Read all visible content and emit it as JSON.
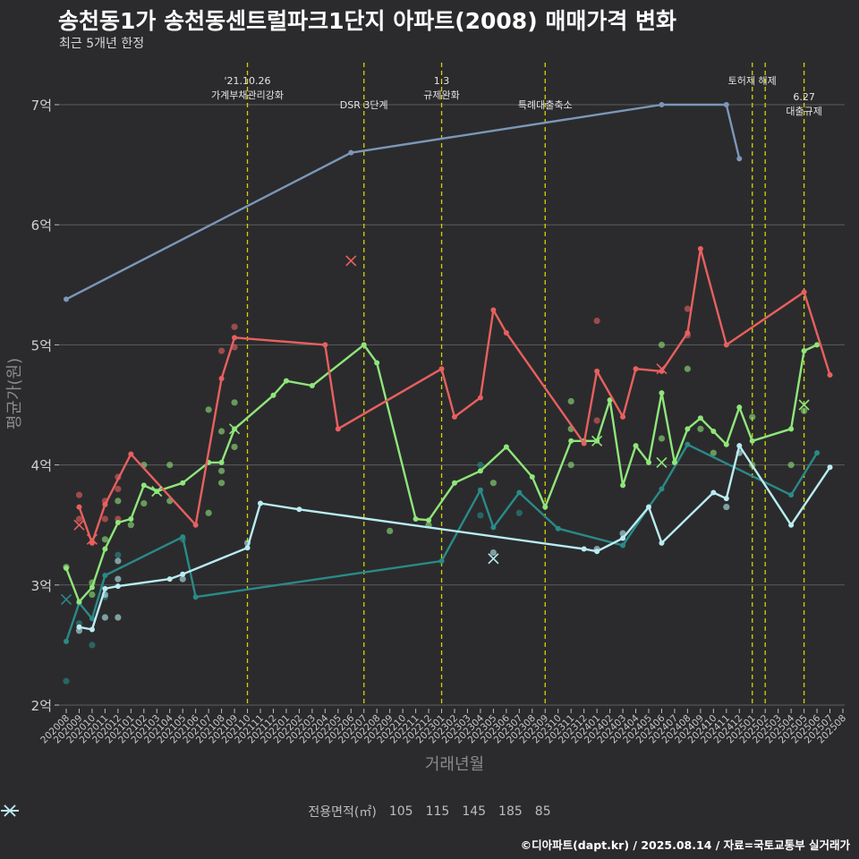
{
  "title": "송천동1가 송천동센트럴파크1단지 아파트(2008) 매매가격 변화",
  "subtitle": "최근 5개년 한정",
  "caption": "©디아파트(dapt.kr) / 2025.08.14 / 자료=국토교통부 실거래가",
  "chart_data": {
    "type": "line",
    "title": "송천동1가 송천동센트럴파크1단지 아파트(2008) 매매가격 변화",
    "subtitle": "최근 5개년 한정",
    "xlabel": "거래년월",
    "ylabel": "평균가(원)",
    "legend_title": "전용면적(㎡)",
    "legend_position": "bottom",
    "grid": true,
    "ylim": [
      2,
      7.3
    ],
    "y_ticks": [
      2,
      3,
      4,
      5,
      6,
      7
    ],
    "y_tick_labels": [
      "2억",
      "3억",
      "4억",
      "5억",
      "6억",
      "7억"
    ],
    "x": [
      "202008",
      "202009",
      "202010",
      "202011",
      "202012",
      "202101",
      "202102",
      "202103",
      "202104",
      "202105",
      "202106",
      "202107",
      "202108",
      "202109",
      "202110",
      "202111",
      "202112",
      "202201",
      "202202",
      "202203",
      "202204",
      "202205",
      "202206",
      "202207",
      "202208",
      "202209",
      "202210",
      "202211",
      "202212",
      "202301",
      "202302",
      "202303",
      "202304",
      "202305",
      "202306",
      "202307",
      "202308",
      "202309",
      "202310",
      "202311",
      "202312",
      "202401",
      "202402",
      "202403",
      "202404",
      "202405",
      "202406",
      "202407",
      "202408",
      "202409",
      "202410",
      "202411",
      "202412",
      "202501",
      "202502",
      "202503",
      "202504",
      "202505",
      "202506",
      "202507",
      "202508"
    ],
    "series": [
      {
        "name": "105",
        "color": "#2a8a88",
        "values": [
          [
            0,
            2.53
          ],
          [
            1,
            2.85
          ],
          [
            2,
            2.72
          ],
          [
            3,
            3.08
          ],
          [
            9,
            3.4
          ],
          [
            10,
            2.9
          ],
          [
            29,
            3.2
          ],
          [
            32,
            3.79
          ],
          [
            33,
            3.48
          ],
          [
            35,
            3.77
          ],
          [
            38,
            3.47
          ],
          [
            43,
            3.33
          ],
          [
            45,
            3.65
          ],
          [
            46,
            3.8
          ],
          [
            48,
            4.17
          ],
          [
            56,
            3.75
          ],
          [
            58,
            4.1
          ]
        ]
      },
      {
        "name": "115",
        "color": "#8fe67a",
        "values": [
          [
            0,
            3.14
          ],
          [
            1,
            2.86
          ],
          [
            2,
            2.98
          ],
          [
            3,
            3.3
          ],
          [
            4,
            3.52
          ],
          [
            5,
            3.55
          ],
          [
            6,
            3.83
          ],
          [
            7,
            3.78
          ],
          [
            9,
            3.85
          ],
          [
            11,
            4.02
          ],
          [
            12,
            4.02
          ],
          [
            13,
            4.3
          ],
          [
            16,
            4.58
          ],
          [
            17,
            4.7
          ],
          [
            19,
            4.66
          ],
          [
            23,
            5.0
          ],
          [
            24,
            4.85
          ],
          [
            27,
            3.55
          ],
          [
            28,
            3.54
          ],
          [
            30,
            3.85
          ],
          [
            32,
            3.95
          ],
          [
            34,
            4.15
          ],
          [
            36,
            3.9
          ],
          [
            37,
            3.65
          ],
          [
            39,
            4.2
          ],
          [
            40,
            4.2
          ],
          [
            41,
            4.2
          ],
          [
            42,
            4.54
          ],
          [
            43,
            3.83
          ],
          [
            44,
            4.16
          ],
          [
            45,
            4.02
          ],
          [
            46,
            4.6
          ],
          [
            47,
            4.02
          ],
          [
            48,
            4.3
          ],
          [
            49,
            4.39
          ],
          [
            50,
            4.28
          ],
          [
            51,
            4.17
          ],
          [
            52,
            4.48
          ],
          [
            53,
            4.2
          ],
          [
            56,
            4.3
          ],
          [
            57,
            4.95
          ],
          [
            58,
            5.0
          ]
        ]
      },
      {
        "name": "145",
        "color": "#e8605f",
        "values": [
          [
            1,
            3.65
          ],
          [
            2,
            3.35
          ],
          [
            3,
            3.67
          ],
          [
            5,
            4.09
          ],
          [
            10,
            3.5
          ],
          [
            12,
            4.72
          ],
          [
            13,
            5.06
          ],
          [
            20,
            5.0
          ],
          [
            21,
            4.3
          ],
          [
            29,
            4.8
          ],
          [
            30,
            4.4
          ],
          [
            32,
            4.56
          ],
          [
            33,
            5.29
          ],
          [
            34,
            5.1
          ],
          [
            40,
            4.18
          ],
          [
            41,
            4.78
          ],
          [
            43,
            4.4
          ],
          [
            44,
            4.8
          ],
          [
            46,
            4.78
          ],
          [
            48,
            5.1
          ],
          [
            49,
            5.8
          ],
          [
            51,
            5.0
          ],
          [
            57,
            5.44
          ],
          [
            59,
            4.75
          ]
        ]
      },
      {
        "name": "185",
        "color": "#7b97b8",
        "values": [
          [
            0,
            5.38
          ],
          [
            22,
            6.6
          ],
          [
            46,
            7.0
          ],
          [
            51,
            7.0
          ],
          [
            52,
            6.55
          ]
        ]
      },
      {
        "name": "85",
        "color": "#b9ecf2",
        "values": [
          [
            1,
            2.65
          ],
          [
            2,
            2.63
          ],
          [
            3,
            2.97
          ],
          [
            4,
            2.99
          ],
          [
            8,
            3.05
          ],
          [
            9,
            3.09
          ],
          [
            14,
            3.31
          ],
          [
            15,
            3.68
          ],
          [
            18,
            3.63
          ],
          [
            40,
            3.3
          ],
          [
            41,
            3.28
          ],
          [
            43,
            3.39
          ],
          [
            45,
            3.65
          ],
          [
            46,
            3.35
          ],
          [
            50,
            3.77
          ],
          [
            51,
            3.72
          ],
          [
            52,
            4.16
          ],
          [
            56,
            3.5
          ],
          [
            59,
            3.98
          ]
        ]
      }
    ],
    "scatter_points": [
      {
        "series": "105",
        "x": 0,
        "y": 2.2
      },
      {
        "series": "105",
        "x": 1,
        "y": 2.68
      },
      {
        "series": "105",
        "x": 2,
        "y": 2.5
      },
      {
        "series": "105",
        "x": 3,
        "y": 2.9
      },
      {
        "series": "105",
        "x": 4,
        "y": 3.25
      },
      {
        "series": "105",
        "x": 9,
        "y": 3.38
      },
      {
        "series": "105",
        "x": 32,
        "y": 3.58
      },
      {
        "series": "105",
        "x": 32,
        "y": 4.0
      },
      {
        "series": "105",
        "x": 35,
        "y": 3.6
      },
      {
        "series": "115",
        "x": 0,
        "y": 3.15
      },
      {
        "series": "115",
        "x": 2,
        "y": 2.92
      },
      {
        "series": "115",
        "x": 2,
        "y": 3.02
      },
      {
        "series": "115",
        "x": 3,
        "y": 3.38
      },
      {
        "series": "115",
        "x": 4,
        "y": 3.7
      },
      {
        "series": "115",
        "x": 5,
        "y": 3.5
      },
      {
        "series": "115",
        "x": 6,
        "y": 4.0
      },
      {
        "series": "115",
        "x": 6,
        "y": 3.68
      },
      {
        "series": "115",
        "x": 8,
        "y": 3.7
      },
      {
        "series": "115",
        "x": 8,
        "y": 4.0
      },
      {
        "series": "115",
        "x": 11,
        "y": 3.6
      },
      {
        "series": "115",
        "x": 11,
        "y": 4.46
      },
      {
        "series": "115",
        "x": 12,
        "y": 4.28
      },
      {
        "series": "115",
        "x": 12,
        "y": 3.95
      },
      {
        "series": "115",
        "x": 12,
        "y": 3.85
      },
      {
        "series": "115",
        "x": 13,
        "y": 4.52
      },
      {
        "series": "115",
        "x": 13,
        "y": 4.15
      },
      {
        "series": "115",
        "x": 25,
        "y": 3.45
      },
      {
        "series": "115",
        "x": 28,
        "y": 3.5
      },
      {
        "series": "115",
        "x": 33,
        "y": 3.85
      },
      {
        "series": "115",
        "x": 39,
        "y": 4.3
      },
      {
        "series": "115",
        "x": 39,
        "y": 4.0
      },
      {
        "series": "115",
        "x": 39,
        "y": 4.53
      },
      {
        "series": "115",
        "x": 46,
        "y": 5.0
      },
      {
        "series": "115",
        "x": 46,
        "y": 4.22
      },
      {
        "series": "115",
        "x": 48,
        "y": 4.8
      },
      {
        "series": "115",
        "x": 49,
        "y": 4.3
      },
      {
        "series": "115",
        "x": 50,
        "y": 4.1
      },
      {
        "series": "115",
        "x": 53,
        "y": 4.0
      },
      {
        "series": "115",
        "x": 53,
        "y": 4.4
      },
      {
        "series": "115",
        "x": 56,
        "y": 4.0
      },
      {
        "series": "115",
        "x": 57,
        "y": 4.45
      },
      {
        "series": "145",
        "x": 1,
        "y": 3.75
      },
      {
        "series": "145",
        "x": 1,
        "y": 3.55
      },
      {
        "series": "145",
        "x": 3,
        "y": 3.55
      },
      {
        "series": "145",
        "x": 3,
        "y": 3.7
      },
      {
        "series": "145",
        "x": 4,
        "y": 3.8
      },
      {
        "series": "145",
        "x": 4,
        "y": 3.9
      },
      {
        "series": "145",
        "x": 4,
        "y": 3.55
      },
      {
        "series": "145",
        "x": 12,
        "y": 4.95
      },
      {
        "series": "145",
        "x": 13,
        "y": 5.15
      },
      {
        "series": "145",
        "x": 13,
        "y": 4.98
      },
      {
        "series": "145",
        "x": 41,
        "y": 5.2
      },
      {
        "series": "145",
        "x": 41,
        "y": 4.37
      },
      {
        "series": "145",
        "x": 48,
        "y": 5.3
      },
      {
        "series": "145",
        "x": 48,
        "y": 5.08
      },
      {
        "series": "85",
        "x": 1,
        "y": 2.62
      },
      {
        "series": "85",
        "x": 3,
        "y": 2.73
      },
      {
        "series": "85",
        "x": 3,
        "y": 2.92
      },
      {
        "series": "85",
        "x": 4,
        "y": 2.73
      },
      {
        "series": "85",
        "x": 4,
        "y": 3.05
      },
      {
        "series": "85",
        "x": 4,
        "y": 3.2
      },
      {
        "series": "85",
        "x": 9,
        "y": 3.05
      },
      {
        "series": "85",
        "x": 14,
        "y": 3.35
      },
      {
        "series": "85",
        "x": 41,
        "y": 3.3
      },
      {
        "series": "85",
        "x": 43,
        "y": 3.43
      },
      {
        "series": "85",
        "x": 51,
        "y": 3.65
      },
      {
        "series": "85",
        "x": 52,
        "y": 4.1
      },
      {
        "series": "85",
        "x": 33,
        "y": 3.27
      }
    ],
    "x_markers": [
      {
        "series": "105",
        "x": 0,
        "y": 2.88
      },
      {
        "series": "145",
        "x": 1,
        "y": 3.5
      },
      {
        "series": "145",
        "x": 2,
        "y": 3.38
      },
      {
        "series": "115",
        "x": 7,
        "y": 3.78
      },
      {
        "series": "115",
        "x": 13,
        "y": 4.3
      },
      {
        "series": "145",
        "x": 22,
        "y": 5.7
      },
      {
        "series": "85",
        "x": 33,
        "y": 3.22
      },
      {
        "series": "115",
        "x": 41,
        "y": 4.2
      },
      {
        "series": "145",
        "x": 46,
        "y": 4.8
      },
      {
        "series": "115",
        "x": 46,
        "y": 4.02
      },
      {
        "series": "115",
        "x": 57,
        "y": 4.5
      }
    ],
    "annotations": [
      {
        "x": 14.0,
        "lines": [
          "'21.10.26",
          "가계부채관리강화"
        ],
        "level": 1
      },
      {
        "x": 23.0,
        "lines": [
          "DSR 3단계"
        ],
        "level": 2
      },
      {
        "x": 29.0,
        "lines": [
          "1.3",
          "규제완화"
        ],
        "level": 1
      },
      {
        "x": 37.0,
        "lines": [
          "특례대출축소"
        ],
        "level": 2
      },
      {
        "x": 53.0,
        "lines": [
          "토허제 해제"
        ],
        "level": 1
      },
      {
        "x": 54.0,
        "lines": [],
        "level": 1
      },
      {
        "x": 57.0,
        "lines": [
          "6.27",
          "대출규제"
        ],
        "level": 3
      }
    ]
  },
  "legend": {
    "title": "전용면적(㎡)",
    "items": [
      {
        "label": "105",
        "color": "#2a8a88"
      },
      {
        "label": "115",
        "color": "#8fe67a"
      },
      {
        "label": "145",
        "color": "#e8605f"
      },
      {
        "label": "185",
        "color": "#7b97b8"
      },
      {
        "label": "85",
        "color": "#b9ecf2"
      }
    ]
  }
}
